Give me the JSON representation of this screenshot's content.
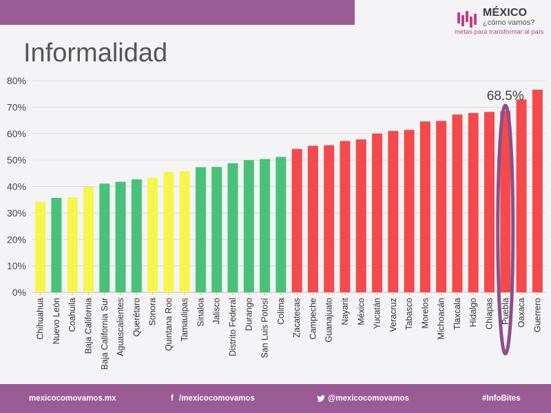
{
  "page": {
    "title": "Informalidad"
  },
  "logo": {
    "name": "MÉXICO",
    "subtitle": "¿cómo vamos?",
    "tagline": "metas para transformar al país"
  },
  "footer": {
    "website": "mexicocomovamos.mx",
    "facebook_icon": "f",
    "facebook": "/mexicocomovamos",
    "twitter_icon": "twitter-bird",
    "twitter": "@mexicocomovamos",
    "hashtag": "#InfoBites"
  },
  "colors": {
    "yellow": "#f7f54b",
    "green": "#48c27a",
    "red": "#f44a4b",
    "purple": "#9b5b95",
    "highlight_ring": "#8e4f8a"
  },
  "chart_data": {
    "type": "bar",
    "title": "",
    "xlabel": "",
    "ylabel": "",
    "ylim": [
      0,
      80
    ],
    "y_ticks": [
      "0%",
      "10%",
      "20%",
      "30%",
      "40%",
      "50%",
      "60%",
      "70%",
      "80%"
    ],
    "grid": true,
    "categories": [
      "Chihuahua",
      "Nuevo León",
      "Coahuila",
      "Baja California",
      "Baja California Sur",
      "Aguascalientes",
      "Querétaro",
      "Sonora",
      "Quintana Roo",
      "Tamaulipas",
      "Sinaloa",
      "Jalisco",
      "Distrito Federal",
      "Durango",
      "San Luis Potosí",
      "Colima",
      "Zacatecas",
      "Campeche",
      "Guanajuato",
      "Nayarit",
      "México",
      "Yucatán",
      "Veracruz",
      "Tabasco",
      "Morelos",
      "Michoacán",
      "Tlaxcala",
      "Hidalgo",
      "Chiapas",
      "Puebla",
      "Oaxaca",
      "Guerrero"
    ],
    "values": [
      34.2,
      35.7,
      35.9,
      39.9,
      41.1,
      41.8,
      42.7,
      43.3,
      45.6,
      45.8,
      47.3,
      47.4,
      48.8,
      50.0,
      50.4,
      51.2,
      54.2,
      55.4,
      55.6,
      57.2,
      57.8,
      60.0,
      61.0,
      61.4,
      64.6,
      64.8,
      67.2,
      67.8,
      68.2,
      68.5,
      72.9,
      76.6
    ],
    "bar_colors": [
      "yellow",
      "green",
      "yellow",
      "yellow",
      "green",
      "green",
      "green",
      "yellow",
      "yellow",
      "yellow",
      "green",
      "green",
      "green",
      "green",
      "green",
      "green",
      "red",
      "red",
      "red",
      "red",
      "red",
      "red",
      "red",
      "red",
      "red",
      "red",
      "red",
      "red",
      "red",
      "red",
      "red",
      "red"
    ],
    "annotation": {
      "category": "Puebla",
      "label": "68.5%"
    }
  }
}
